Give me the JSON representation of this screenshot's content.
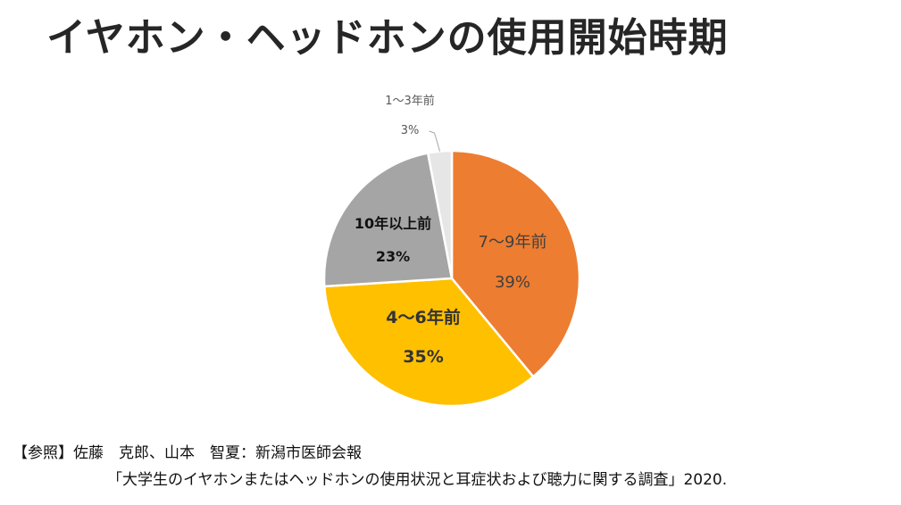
{
  "title": "イヤホン・ヘッドホンの使用開始時期",
  "chart_data": {
    "type": "pie",
    "start": "12 o'clock",
    "direction": "clockwise",
    "slices": [
      {
        "label": "7〜9年前",
        "value": 39,
        "value_label": "39%",
        "color": "#ED7D31",
        "label_color": "#404040",
        "bold": false
      },
      {
        "label": "4〜6年前",
        "value": 35,
        "value_label": "35%",
        "color": "#FFC000",
        "label_color": "#333333",
        "bold": true
      },
      {
        "label": "10年以上前",
        "value": 23,
        "value_label": "23%",
        "color": "#A5A5A5",
        "label_color": "#111111",
        "bold": true
      },
      {
        "label": "1〜3年前",
        "value": 3,
        "value_label": "3%",
        "color": "#E7E6E6",
        "label_color": "#595959",
        "bold": false
      }
    ]
  },
  "reference": {
    "line1": "【参照】佐藤　克郎、山本　智夏：新潟市医師会報",
    "line2": "「大学生のイヤホンまたはヘッドホンの使用状況と耳症状および聴力に関する調査」2020."
  }
}
